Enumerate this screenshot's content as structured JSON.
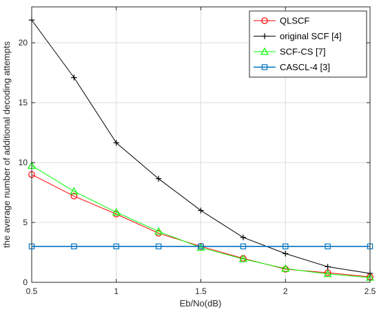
{
  "chart_data": {
    "type": "line",
    "title": "",
    "xlabel": "Eb/No(dB)",
    "ylabel": "the average number of additional decoding attempts",
    "x": [
      0.5,
      0.75,
      1,
      1.25,
      1.5,
      1.75,
      2,
      2.25,
      2.5
    ],
    "xlim": [
      0.5,
      2.5
    ],
    "ylim": [
      0,
      23
    ],
    "xticks": [
      0.5,
      1,
      1.5,
      2,
      2.5
    ],
    "xtick_labels": [
      "0.5",
      "1",
      "1.5",
      "2",
      "2.5"
    ],
    "yticks": [
      0,
      5,
      10,
      15,
      20
    ],
    "ytick_labels": [
      "0",
      "5",
      "10",
      "15",
      "20"
    ],
    "grid": true,
    "legend_position": "top-right",
    "series": [
      {
        "name": "QLSCF",
        "color": "#ff0000",
        "marker": "circle",
        "values": [
          9.0,
          7.2,
          5.7,
          4.1,
          3.0,
          2.0,
          1.1,
          0.8,
          0.45
        ]
      },
      {
        "name": "original SCF [4]",
        "color": "#000000",
        "marker": "plus",
        "values": [
          21.9,
          17.1,
          11.65,
          8.65,
          6.0,
          3.75,
          2.4,
          1.3,
          0.75
        ]
      },
      {
        "name": "SCF-CS [7]",
        "color": "#00ff00",
        "marker": "triangle",
        "values": [
          9.75,
          7.6,
          5.85,
          4.25,
          2.9,
          1.95,
          1.15,
          0.7,
          0.4
        ]
      },
      {
        "name": "CASCL-4 [3]",
        "color": "#0072bd",
        "marker": "square",
        "values": [
          3.0,
          3.0,
          3.0,
          3.0,
          3.0,
          3.0,
          3.0,
          3.0,
          3.0
        ]
      }
    ]
  }
}
